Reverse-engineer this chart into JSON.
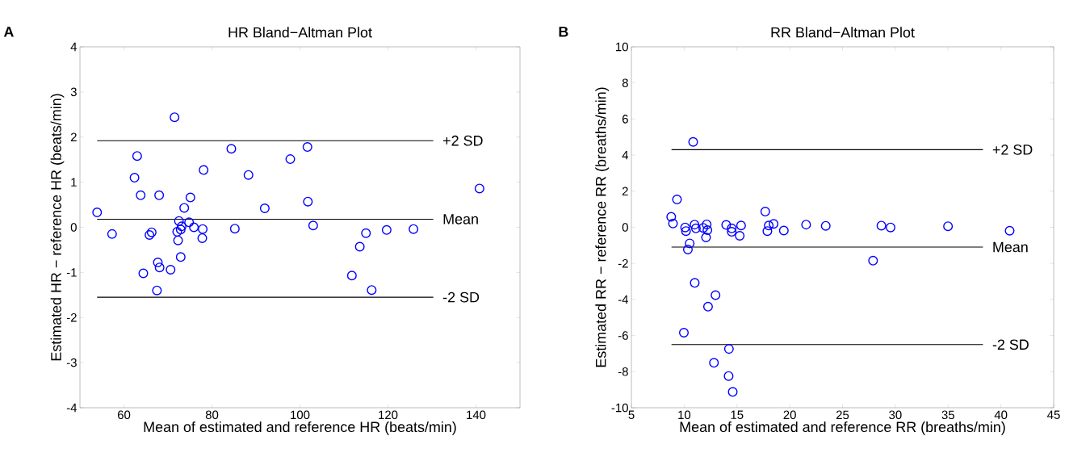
{
  "chart_data": [
    {
      "type": "scatter",
      "title": "HR Bland−Altman Plot",
      "xlabel": "Mean of estimated and reference HR (beats/min)",
      "ylabel": "Estimated HR − reference HR (beats/min)",
      "annotations": [
        "A"
      ],
      "xlim": [
        50,
        150
      ],
      "ylim": [
        -4,
        4
      ],
      "xticks": [
        60,
        80,
        100,
        120,
        140
      ],
      "yticks": [
        -4,
        -3,
        -2,
        -1,
        0,
        1,
        2,
        3,
        4
      ],
      "marker": "circle",
      "grid": false,
      "series": [
        {
          "color": "#0000ff",
          "x": [
            53.9,
            57.3,
            63.0,
            62.4,
            63.8,
            68.0,
            71.5,
            66.3,
            65.8,
            67.7,
            68.1,
            64.4,
            67.5,
            70.6,
            72.9,
            72.3,
            72.1,
            72.5,
            73.1,
            72.9,
            73.7,
            75.1,
            74.8,
            75.9,
            77.9,
            77.8,
            78.1,
            84.4,
            85.2,
            88.3,
            92.0,
            97.8,
            101.7,
            101.8,
            103.0,
            113.6,
            115.0,
            119.7,
            125.8,
            111.8,
            116.3,
            140.8
          ],
          "values": [
            0.33,
            -0.15,
            1.58,
            1.1,
            0.71,
            0.71,
            2.44,
            -0.11,
            -0.17,
            -0.78,
            -0.89,
            -1.02,
            -1.4,
            -0.94,
            -0.66,
            -0.29,
            -0.1,
            0.14,
            0.02,
            -0.05,
            0.43,
            0.66,
            0.11,
            0.0,
            -0.04,
            -0.24,
            1.27,
            1.74,
            -0.03,
            1.16,
            0.42,
            1.51,
            1.78,
            0.57,
            0.04,
            -0.43,
            -0.13,
            -0.06,
            -0.04,
            -1.07,
            -1.39,
            0.86
          ]
        },
        {
          "type": "line",
          "name": "+2 SD",
          "color": "#000000",
          "marker": "none",
          "line_style": "solid",
          "x": [
            53.9,
            130.3
          ],
          "values": [
            1.92,
            1.92
          ]
        },
        {
          "type": "line",
          "name": "Mean",
          "color": "#000000",
          "marker": "none",
          "line_style": "solid",
          "x": [
            53.9,
            130.3
          ],
          "values": [
            0.18,
            0.18
          ]
        },
        {
          "type": "line",
          "name": "-2 SD",
          "color": "#000000",
          "marker": "none",
          "line_style": "solid",
          "x": [
            53.9,
            130.3
          ],
          "values": [
            -1.55,
            -1.55
          ]
        }
      ]
    },
    {
      "type": "scatter",
      "title": "RR Bland−Altman Plot",
      "xlabel": "Mean of estimated and reference RR (breaths/min)",
      "ylabel": "Estimated RR − reference RR (breaths/min)",
      "annotations": [
        "B"
      ],
      "xlim": [
        5,
        45
      ],
      "ylim": [
        -10,
        10
      ],
      "xticks": [
        5,
        10,
        15,
        20,
        25,
        30,
        35,
        40,
        45
      ],
      "yticks": [
        -10,
        -8,
        -6,
        -4,
        -2,
        0,
        2,
        4,
        6,
        8,
        10
      ],
      "marker": "circle",
      "grid": false,
      "series": [
        {
          "color": "#0000ff",
          "x": [
            10.85,
            9.32,
            8.77,
            8.94,
            10.09,
            10.17,
            10.98,
            11.11,
            11.8,
            12.13,
            12.2,
            12.07,
            10.52,
            10.35,
            13.98,
            14.5,
            14.5,
            15.39,
            15.26,
            17.68,
            18.01,
            17.88,
            18.47,
            19.44,
            21.55,
            11.0,
            12.97,
            12.26,
            9.97,
            14.24,
            12.82,
            14.21,
            14.6,
            23.41,
            28.68,
            29.55,
            27.89,
            34.99,
            40.83
          ],
          "values": [
            4.73,
            1.54,
            0.58,
            0.21,
            -0.01,
            -0.21,
            0.15,
            -0.06,
            -0.03,
            0.16,
            -0.16,
            -0.56,
            -0.89,
            -1.23,
            0.13,
            -0.06,
            -0.25,
            0.1,
            -0.47,
            0.87,
            0.1,
            -0.21,
            0.19,
            -0.18,
            0.15,
            -3.08,
            -3.76,
            -4.4,
            -5.84,
            -6.74,
            -7.51,
            -8.24,
            -9.12,
            0.08,
            0.09,
            -0.01,
            -1.85,
            0.06,
            -0.19
          ]
        },
        {
          "type": "line",
          "name": "+2 SD",
          "color": "#000000",
          "marker": "none",
          "line_style": "solid",
          "x": [
            8.8,
            38.3
          ],
          "values": [
            4.3,
            4.3
          ]
        },
        {
          "type": "line",
          "name": "Mean",
          "color": "#000000",
          "marker": "none",
          "line_style": "solid",
          "x": [
            8.8,
            38.3
          ],
          "values": [
            -1.1,
            -1.1
          ]
        },
        {
          "type": "line",
          "name": "-2 SD",
          "color": "#000000",
          "marker": "none",
          "line_style": "solid",
          "x": [
            8.8,
            38.3
          ],
          "values": [
            -6.5,
            -6.5
          ]
        }
      ]
    }
  ]
}
